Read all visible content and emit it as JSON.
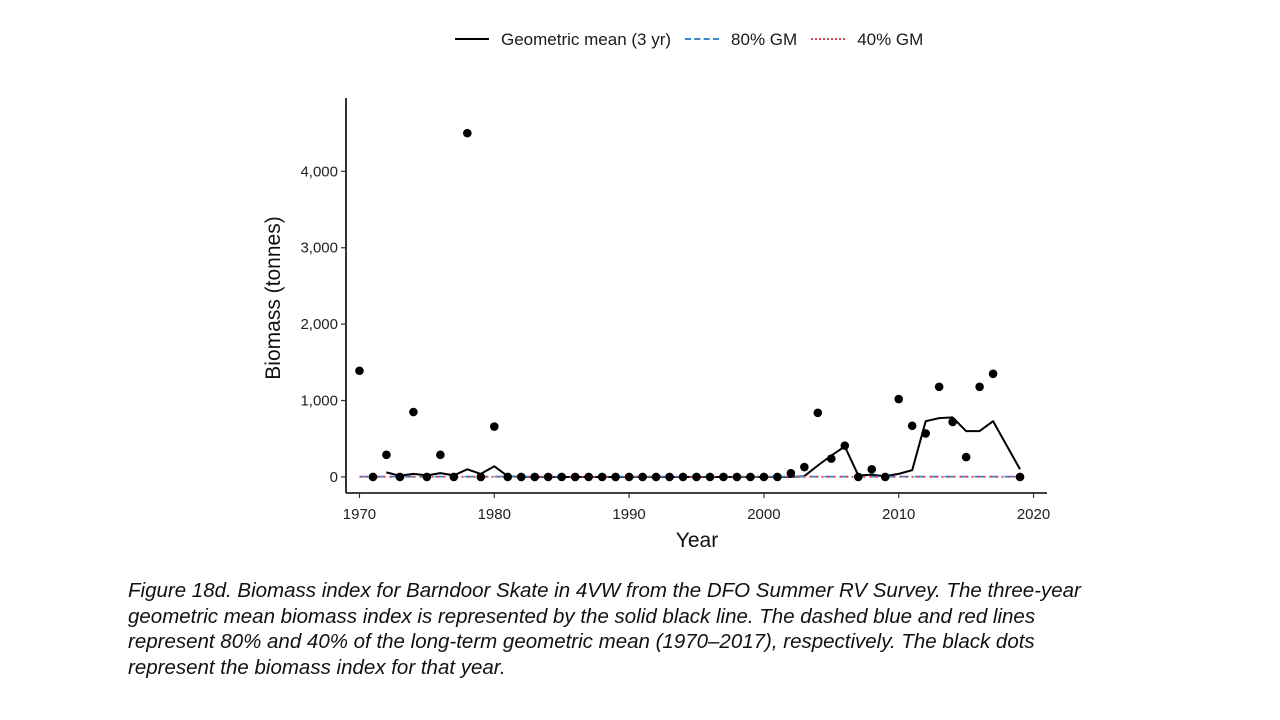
{
  "legend": {
    "items": [
      {
        "label": "Geometric mean (3 yr)",
        "style": "solid",
        "color": "#000000"
      },
      {
        "label": "80% GM",
        "style": "dashed",
        "color": "#3a86c8"
      },
      {
        "label": "40% GM",
        "style": "dotted",
        "color": "#d9435a"
      }
    ]
  },
  "caption": {
    "lines": [
      "Figure 18d. Biomass index for Barndoor Skate in 4VW from the DFO Summer RV Survey. The three-year",
      "geometric mean biomass index is represented by the solid black line. The dashed blue and red lines",
      "represent 80% and 40% of the long-term geometric mean (1970–2017), respectively. The black dots",
      "represent the biomass index for that year."
    ]
  },
  "chart_data": {
    "type": "line",
    "title": "",
    "xlabel": "Year",
    "ylabel": "Biomass (tonnes)",
    "xlim": [
      1969,
      2021
    ],
    "ylim": [
      -210,
      4960
    ],
    "xticks": [
      1970,
      1980,
      1990,
      2000,
      2010,
      2020
    ],
    "xtick_labels": [
      "1970",
      "1980",
      "1990",
      "2000",
      "2010",
      "2020"
    ],
    "yticks": [
      0,
      1000,
      2000,
      3000,
      4000
    ],
    "ytick_labels": [
      "0",
      "1,000",
      "2,000",
      "3,000",
      "4,000"
    ],
    "grid": false,
    "legend_position": "top",
    "series": [
      {
        "name": "Geometric mean (3 yr)",
        "style": "solid",
        "color": "#000000",
        "points": [
          [
            1972,
            60
          ],
          [
            1973,
            15
          ],
          [
            1974,
            40
          ],
          [
            1975,
            20
          ],
          [
            1976,
            50
          ],
          [
            1977,
            20
          ],
          [
            1978,
            100
          ],
          [
            1979,
            40
          ],
          [
            1980,
            140
          ],
          [
            1981,
            10
          ],
          [
            1982,
            0
          ],
          [
            1983,
            0
          ],
          [
            1984,
            0
          ],
          [
            1985,
            0
          ],
          [
            1986,
            0
          ],
          [
            1987,
            0
          ],
          [
            1988,
            0
          ],
          [
            1989,
            0
          ],
          [
            1990,
            0
          ],
          [
            1991,
            0
          ],
          [
            1992,
            0
          ],
          [
            1993,
            0
          ],
          [
            1994,
            0
          ],
          [
            1995,
            0
          ],
          [
            1996,
            0
          ],
          [
            1997,
            0
          ],
          [
            1998,
            0
          ],
          [
            1999,
            0
          ],
          [
            2000,
            0
          ],
          [
            2001,
            0
          ],
          [
            2002,
            0
          ],
          [
            2003,
            10
          ],
          [
            2004,
            150
          ],
          [
            2005,
            280
          ],
          [
            2006,
            400
          ],
          [
            2007,
            20
          ],
          [
            2008,
            30
          ],
          [
            2009,
            10
          ],
          [
            2010,
            40
          ],
          [
            2011,
            90
          ],
          [
            2012,
            730
          ],
          [
            2013,
            770
          ],
          [
            2014,
            780
          ],
          [
            2015,
            600
          ],
          [
            2016,
            600
          ],
          [
            2017,
            730
          ],
          [
            2019,
            100
          ]
        ]
      },
      {
        "name": "80% GM",
        "style": "dashed",
        "color": "#3a86c8",
        "points": [
          [
            1970,
            5
          ],
          [
            2019,
            5
          ]
        ]
      },
      {
        "name": "40% GM",
        "style": "dotted",
        "color": "#d9435a",
        "points": [
          [
            1970,
            2
          ],
          [
            2019,
            2
          ]
        ]
      }
    ],
    "points": {
      "name": "Biomass index",
      "color": "#000000",
      "x": [
        1970,
        1971,
        1972,
        1973,
        1974,
        1975,
        1976,
        1977,
        1978,
        1979,
        1980,
        1981,
        1982,
        1983,
        1984,
        1985,
        1986,
        1987,
        1988,
        1989,
        1990,
        1991,
        1992,
        1993,
        1994,
        1995,
        1996,
        1997,
        1998,
        1999,
        2000,
        2001,
        2002,
        2003,
        2004,
        2005,
        2006,
        2007,
        2008,
        2009,
        2010,
        2011,
        2012,
        2013,
        2014,
        2015,
        2016,
        2017,
        2019
      ],
      "y": [
        1390,
        0,
        290,
        0,
        850,
        0,
        290,
        0,
        4500,
        0,
        660,
        0,
        0,
        0,
        0,
        0,
        0,
        0,
        0,
        0,
        0,
        0,
        0,
        0,
        0,
        0,
        0,
        0,
        0,
        0,
        0,
        0,
        50,
        130,
        840,
        240,
        410,
        0,
        100,
        0,
        1020,
        670,
        570,
        1180,
        720,
        260,
        1180,
        1350,
        0
      ]
    }
  }
}
